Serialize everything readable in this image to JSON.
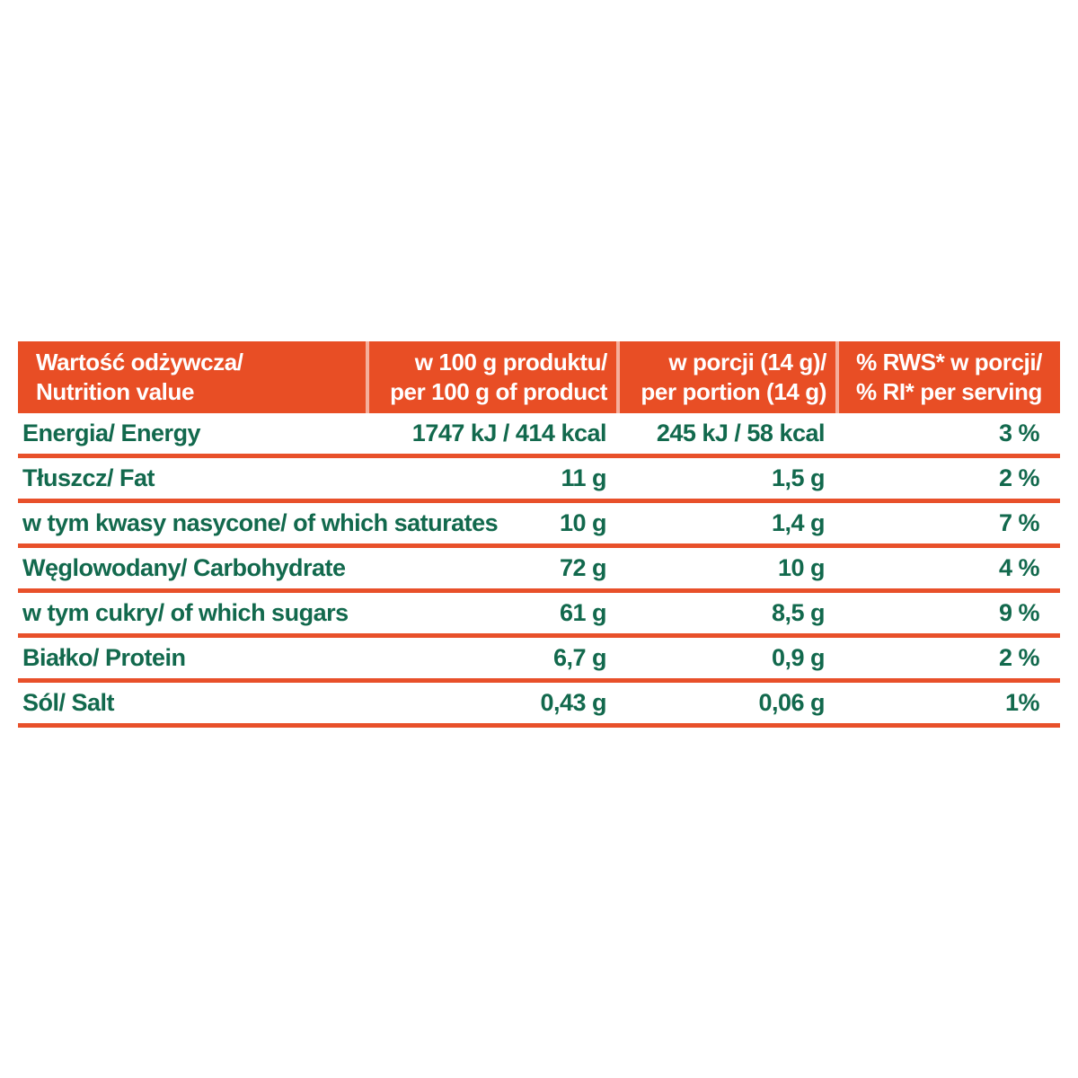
{
  "colors": {
    "accent_orange": "#E84E25",
    "divider_orange": "#E8502A",
    "text_green": "#12694D",
    "header_text": "#FFFFFF"
  },
  "table": {
    "headers": [
      {
        "line1": "Wartość odżywcza/",
        "line2": "Nutrition value"
      },
      {
        "line1": "w 100 g produktu/",
        "line2": "per 100 g of product"
      },
      {
        "line1": "w porcji (14 g)/",
        "line2": "per portion (14 g)"
      },
      {
        "line1": "% RWS* w porcji/",
        "line2": "% RI* per serving"
      }
    ],
    "rows": [
      {
        "label": "Energia/ Energy",
        "per_100g": "1747 kJ / 414 kcal",
        "per_portion": "245 kJ / 58 kcal",
        "percent_ri": "3 %"
      },
      {
        "label": "Tłuszcz/ Fat",
        "per_100g": "11 g",
        "per_portion": "1,5 g",
        "percent_ri": "2 %"
      },
      {
        "label": "w tym kwasy nasycone/ of which saturates",
        "per_100g": "10 g",
        "per_portion": "1,4 g",
        "percent_ri": "7 %"
      },
      {
        "label": "Węglowodany/ Carbohydrate",
        "per_100g": "72 g",
        "per_portion": "10 g",
        "percent_ri": "4 %"
      },
      {
        "label": "w tym cukry/ of which sugars",
        "per_100g": "61 g",
        "per_portion": "8,5 g",
        "percent_ri": "9 %"
      },
      {
        "label": "Białko/ Protein",
        "per_100g": "6,7 g",
        "per_portion": "0,9 g",
        "percent_ri": "2 %"
      },
      {
        "label": "Sól/ Salt",
        "per_100g": "0,43 g",
        "per_portion": "0,06 g",
        "percent_ri": "1%"
      }
    ]
  }
}
